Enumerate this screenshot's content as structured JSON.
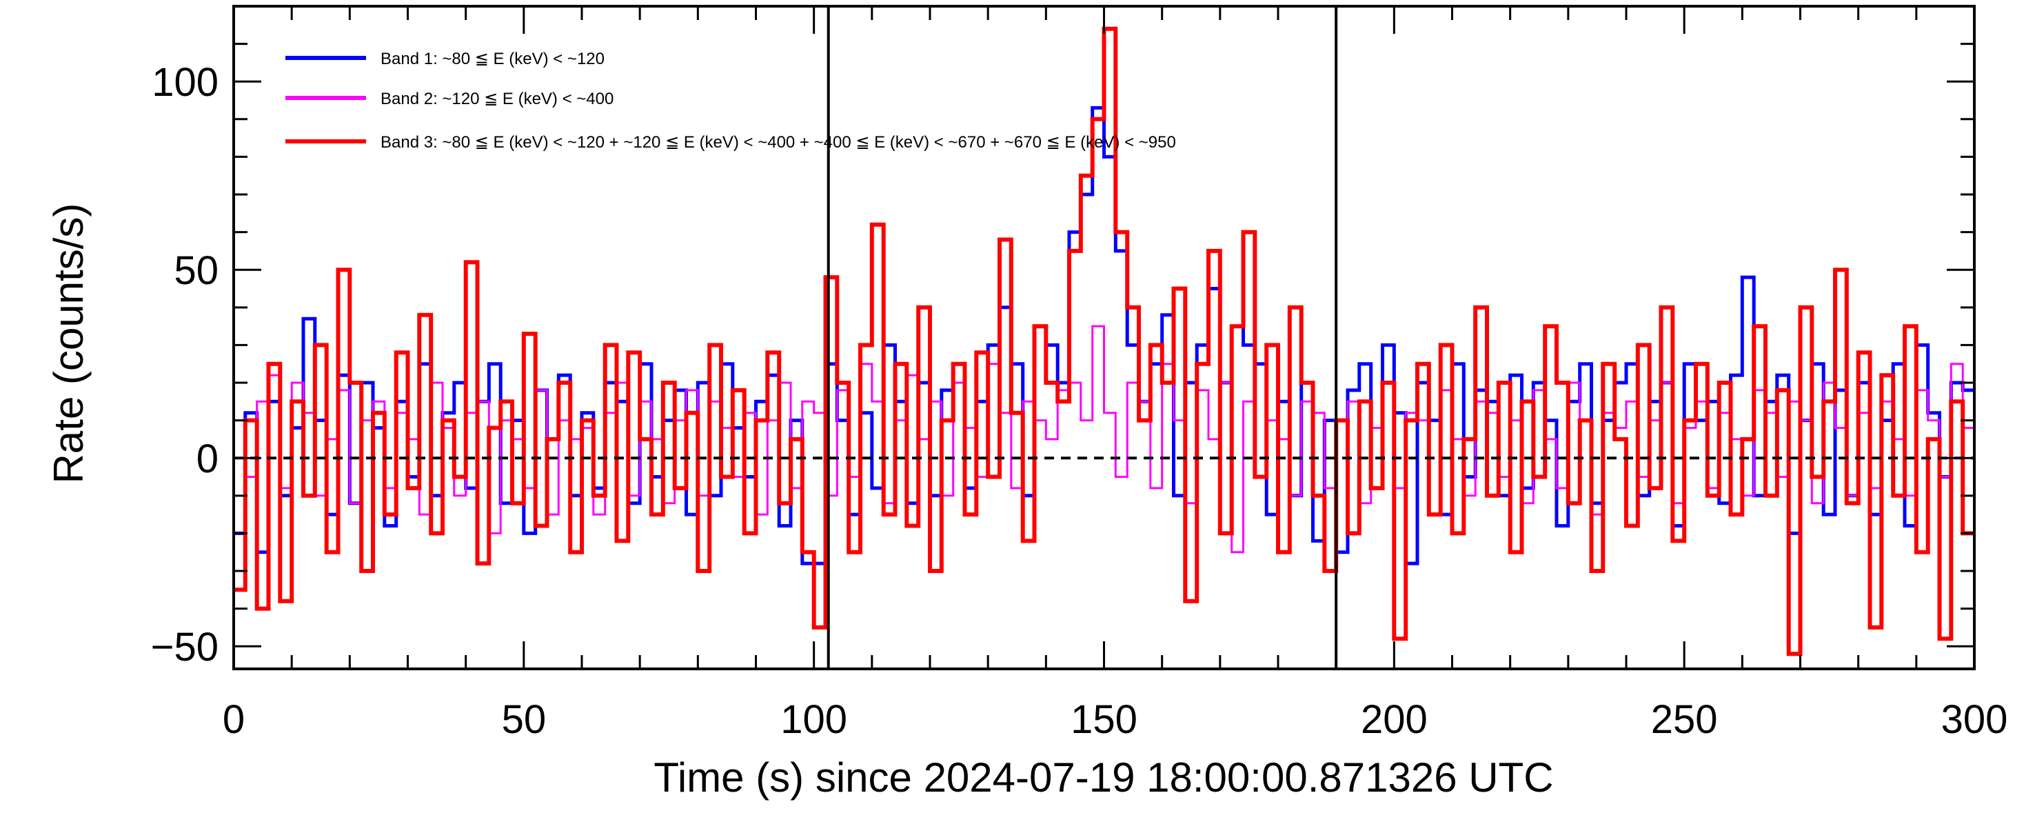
{
  "chart_data": {
    "type": "line",
    "title": "",
    "xlabel": "Time (s) since 2024-07-19 18:00:00.871326 UTC",
    "ylabel": "Rate (counts/s)",
    "xlim": [
      0,
      300
    ],
    "ylim": [
      -56,
      120
    ],
    "x_ticks": [
      "0",
      "50",
      "100",
      "150",
      "200",
      "250",
      "300"
    ],
    "x_tick_values": [
      0,
      50,
      100,
      150,
      200,
      250,
      300
    ],
    "y_ticks": [
      "-50",
      "0",
      "50",
      "100"
    ],
    "y_tick_values": [
      -50,
      0,
      50,
      100
    ],
    "grid": false,
    "legend_placement": "top-left",
    "bin_width": 2,
    "x_start": 0,
    "reference_lines": {
      "horizontal_dashed": 0,
      "vertical": [
        102.5,
        190
      ]
    },
    "series": [
      {
        "name": "Band 1: ~80 ≦ E (keV) < ~120",
        "color": "#0000ff",
        "values": [
          -20,
          12,
          -25,
          15,
          -10,
          8,
          37,
          10,
          -15,
          22,
          -12,
          20,
          8,
          -18,
          15,
          -5,
          25,
          -10,
          12,
          20,
          -8,
          15,
          25,
          -12,
          10,
          -20,
          18,
          5,
          22,
          -10,
          12,
          -8,
          20,
          15,
          -12,
          25,
          -5,
          10,
          18,
          -15,
          20,
          -10,
          25,
          8,
          -5,
          15,
          22,
          -18,
          10,
          -28,
          -28,
          25,
          10,
          -15,
          12,
          -8,
          30,
          15,
          -12,
          20,
          -10,
          18,
          25,
          -8,
          15,
          30,
          40,
          25,
          -10,
          35,
          30,
          20,
          60,
          70,
          93,
          80,
          55,
          30,
          15,
          25,
          38,
          -10,
          20,
          30,
          45,
          20,
          35,
          30,
          25,
          -15,
          15,
          -10,
          20,
          -22,
          10,
          -25,
          18,
          25,
          -8,
          30,
          12,
          -28,
          20,
          10,
          -15,
          25,
          -5,
          18,
          15,
          -10,
          22,
          -8,
          20,
          10,
          -18,
          15,
          25,
          -12,
          10,
          20,
          25,
          -10,
          15,
          20,
          -18,
          25,
          10,
          15,
          -12,
          22,
          48,
          -10,
          15,
          22,
          -20,
          10,
          25,
          -15,
          18,
          -10,
          20,
          -15,
          10,
          25,
          -18,
          30,
          12,
          -5,
          20,
          18
        ]
      },
      {
        "name": "Band 2: ~120 ≦ E (keV) < ~400",
        "color": "#ff00ff",
        "values": [
          10,
          -5,
          15,
          22,
          -8,
          20,
          12,
          -10,
          5,
          18,
          -12,
          10,
          15,
          -8,
          12,
          5,
          -15,
          20,
          8,
          -10,
          12,
          15,
          -20,
          10,
          5,
          -8,
          18,
          -15,
          10,
          5,
          8,
          -15,
          12,
          20,
          -10,
          15,
          5,
          -12,
          10,
          18,
          -10,
          15,
          8,
          -5,
          12,
          -15,
          10,
          20,
          -8,
          15,
          12,
          -10,
          18,
          -5,
          25,
          15,
          -12,
          10,
          22,
          5,
          15,
          -10,
          20,
          8,
          -5,
          25,
          12,
          -8,
          15,
          10,
          5,
          18,
          20,
          10,
          35,
          12,
          -5,
          20,
          15,
          -8,
          25,
          10,
          -12,
          18,
          5,
          20,
          -25,
          15,
          -5,
          10,
          5,
          -10,
          15,
          12,
          -8,
          10,
          15,
          -12,
          8,
          20,
          -8,
          12,
          10,
          -15,
          18,
          5,
          -10,
          15,
          12,
          -5,
          10,
          -12,
          18,
          5,
          -8,
          20,
          10,
          -15,
          12,
          8,
          15,
          -5,
          10,
          20,
          -12,
          8,
          15,
          -8,
          12,
          5,
          -10,
          18,
          12,
          -5,
          15,
          10,
          -12,
          20,
          8,
          -10,
          12,
          -8,
          15,
          5,
          -10,
          18,
          10,
          -5,
          25,
          8
        ]
      },
      {
        "name": "Band 3: ~80 ≦ E (keV) < ~120 + ~120 ≦ E (keV) < ~400 + ~400 ≦ E (keV) < ~670 + ~670 ≦ E (keV) < ~950",
        "color": "#ff0000",
        "values": [
          -35,
          10,
          -40,
          25,
          -38,
          15,
          -10,
          30,
          -25,
          50,
          20,
          -30,
          12,
          -15,
          28,
          -8,
          38,
          -20,
          10,
          -5,
          52,
          -28,
          8,
          15,
          -12,
          33,
          -18,
          5,
          20,
          -25,
          10,
          -10,
          30,
          -22,
          28,
          5,
          -15,
          20,
          -8,
          12,
          -30,
          30,
          -5,
          18,
          -20,
          10,
          28,
          -12,
          5,
          -25,
          -45,
          48,
          20,
          -25,
          30,
          62,
          -15,
          25,
          -18,
          40,
          -30,
          10,
          25,
          -15,
          28,
          -5,
          58,
          12,
          -22,
          35,
          20,
          15,
          55,
          75,
          90,
          114,
          60,
          40,
          10,
          30,
          20,
          45,
          -38,
          25,
          55,
          -20,
          35,
          60,
          -5,
          30,
          -25,
          40,
          20,
          -10,
          -30,
          10,
          -20,
          15,
          -8,
          20,
          -48,
          10,
          25,
          -15,
          30,
          -20,
          5,
          40,
          -10,
          20,
          -25,
          15,
          -5,
          35,
          20,
          -12,
          10,
          -30,
          25,
          5,
          -18,
          30,
          -8,
          40,
          -22,
          10,
          25,
          -10,
          20,
          -15,
          5,
          35,
          -10,
          18,
          -52,
          40,
          -5,
          15,
          50,
          -12,
          28,
          -45,
          22,
          -10,
          35,
          -25,
          5,
          -48,
          15,
          -20
        ]
      }
    ]
  }
}
